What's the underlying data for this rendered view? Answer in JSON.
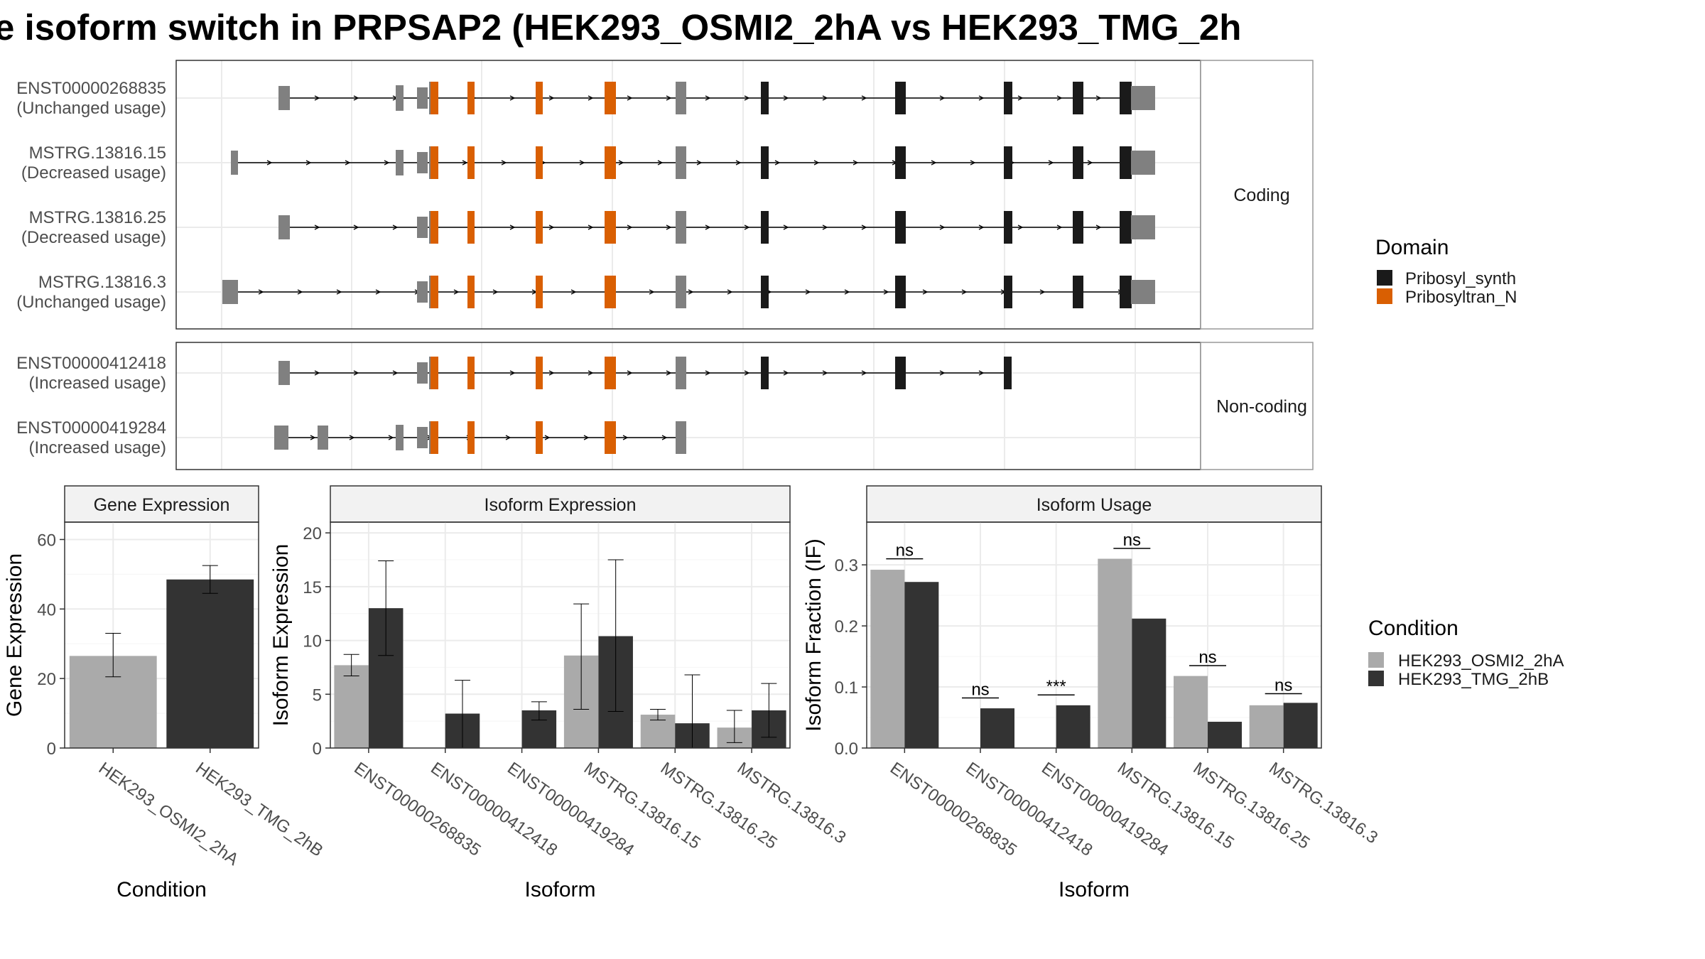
{
  "title": "e isoform switch in PRPSAP2 (HEK293_OSMI2_2hA vs HEK293_TMG_2h",
  "colors": {
    "Pribosyl_synth": "#1a1a1a",
    "Pribosyltran_N": "#d95f02",
    "none": "#808080",
    "HEK293_OSMI2_2hA": "#aaaaaa",
    "HEK293_TMG_2hB": "#333333",
    "strip": "#f2f2f2",
    "grid": "#ebebeb"
  },
  "structure": {
    "panels": [
      {
        "strip_label": "Coding",
        "isoforms": [
          {
            "id": "ENST00000268835",
            "usage": "(Unchanged usage)"
          },
          {
            "id": "MSTRG.13816.15",
            "usage": "(Decreased usage)"
          },
          {
            "id": "MSTRG.13816.25",
            "usage": "(Decreased usage)"
          },
          {
            "id": "MSTRG.13816.3",
            "usage": "(Unchanged usage)"
          }
        ]
      },
      {
        "strip_label": "Non-coding",
        "isoforms": [
          {
            "id": "ENST00000412418",
            "usage": "(Increased usage)"
          },
          {
            "id": "ENST00000419284",
            "usage": "(Increased usage)"
          }
        ]
      }
    ],
    "legend": {
      "title": "Domain",
      "items": [
        {
          "label": "Pribosyl_synth",
          "color_key": "Pribosyl_synth"
        },
        {
          "label": "Pribosyltran_N",
          "color_key": "Pribosyltran_N"
        }
      ]
    }
  },
  "chart_data": [
    {
      "type": "bar",
      "strip": "Gene Expression",
      "xlabel": "Condition",
      "ylabel": "Gene Expression",
      "ylim": [
        0,
        65
      ],
      "yticks": [
        0,
        20,
        40,
        60
      ],
      "categories": [
        "HEK293_OSMI2_2hA",
        "HEK293_TMG_2hB"
      ],
      "values": [
        26.5,
        48.5
      ],
      "errors": [
        [
          20.5,
          33
        ],
        [
          44.5,
          52.5
        ]
      ]
    },
    {
      "type": "bar",
      "strip": "Isoform Expression",
      "xlabel": "Isoform",
      "ylabel": "Isoform Expression",
      "ylim": [
        0,
        21
      ],
      "yticks": [
        0,
        5,
        10,
        15,
        20
      ],
      "categories": [
        "ENST00000268835",
        "ENST00000412418",
        "ENST00000419284",
        "MSTRG.13816.15",
        "MSTRG.13816.25",
        "MSTRG.13816.3"
      ],
      "series": [
        {
          "name": "HEK293_OSMI2_2hA",
          "values": [
            7.7,
            0,
            0,
            8.6,
            3.1,
            1.9
          ],
          "errors": [
            [
              6.7,
              8.7
            ],
            [
              0,
              0
            ],
            [
              0,
              0
            ],
            [
              3.6,
              13.4
            ],
            [
              2.6,
              3.6
            ],
            [
              0.5,
              3.5
            ]
          ]
        },
        {
          "name": "HEK293_TMG_2hB",
          "values": [
            13,
            3.2,
            3.5,
            10.4,
            2.3,
            3.5
          ],
          "errors": [
            [
              8.6,
              17.4
            ],
            [
              0,
              6.3
            ],
            [
              2.6,
              4.3
            ],
            [
              3.4,
              17.5
            ],
            [
              0,
              6.8
            ],
            [
              1,
              6
            ]
          ]
        }
      ]
    },
    {
      "type": "bar",
      "strip": "Isoform Usage",
      "xlabel": "Isoform",
      "ylabel": "Isoform Fraction (IF)",
      "ylim": [
        0,
        0.37
      ],
      "yticks": [
        0,
        0.1,
        0.2,
        0.3
      ],
      "ytick_labels": [
        "0.0",
        "0.1",
        "0.2",
        "0.3"
      ],
      "categories": [
        "ENST00000268835",
        "ENST00000412418",
        "ENST00000419284",
        "MSTRG.13816.15",
        "MSTRG.13816.25",
        "MSTRG.13816.3"
      ],
      "series": [
        {
          "name": "HEK293_OSMI2_2hA",
          "values": [
            0.292,
            0,
            0,
            0.31,
            0.118,
            0.07
          ]
        },
        {
          "name": "HEK293_TMG_2hB",
          "values": [
            0.272,
            0.065,
            0.07,
            0.212,
            0.043,
            0.074
          ]
        }
      ],
      "significance": [
        "ns",
        "ns",
        "***",
        "ns",
        "ns",
        "ns"
      ],
      "significance_level": [
        0.31,
        0.082,
        0.087,
        0.327,
        0.135,
        0.089
      ]
    }
  ],
  "condition_legend": {
    "title": "Condition",
    "items": [
      {
        "label": "HEK293_OSMI2_2hA",
        "color_key": "HEK293_OSMI2_2hA"
      },
      {
        "label": "HEK293_TMG_2hB",
        "color_key": "HEK293_TMG_2hB"
      }
    ]
  }
}
